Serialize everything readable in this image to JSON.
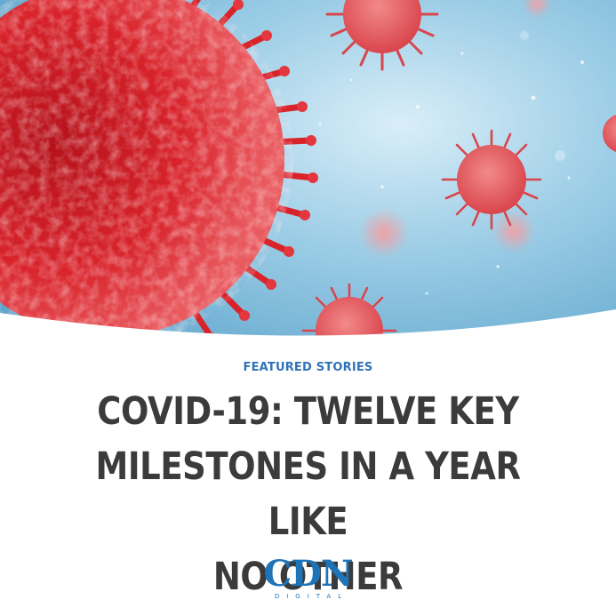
{
  "hero": {
    "icon": "virus-illustration"
  },
  "article": {
    "category": "FEATURED STORIES",
    "title_line1": "COVID-19: TWELVE KEY",
    "title_line2": "MILESTONES IN A YEAR LIKE",
    "title_line3": "NO OTHER"
  },
  "brand": {
    "logo_text": "CDN",
    "logo_subtext": "DIGITAL",
    "color": "#1f73b7"
  },
  "colors": {
    "category": "#2f72b8",
    "headline": "#3b3b3b",
    "virus_red": "#d8222a",
    "sky_blue": "#8fc6e3"
  }
}
